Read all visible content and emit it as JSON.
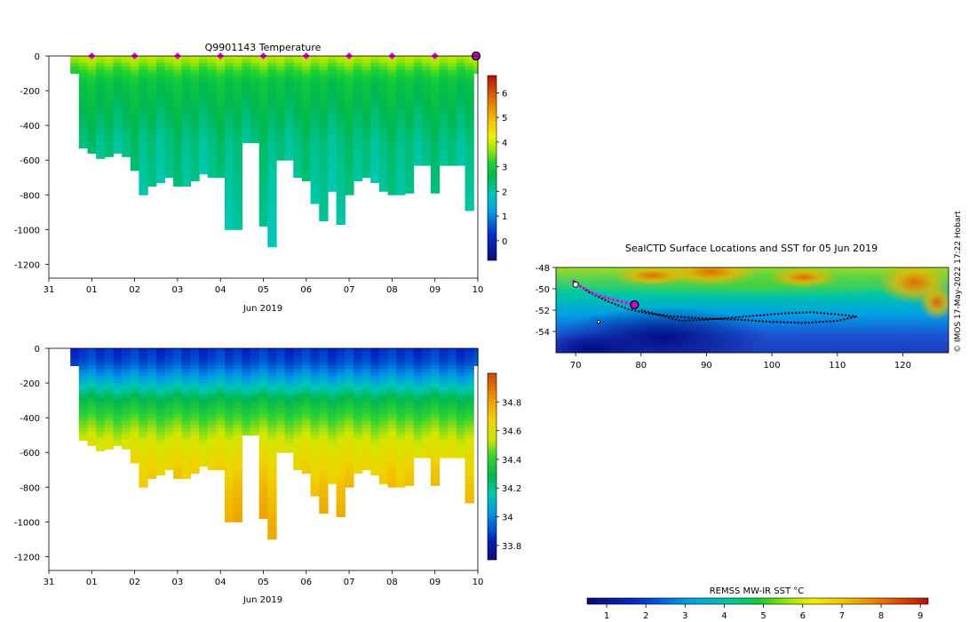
{
  "credit": "© IMOS 17-May-2022 17:22 Hobart",
  "chart_data": [
    {
      "id": "temperature",
      "type": "heatmap",
      "title": "Q9901143  Temperature",
      "xlabel": "Jun 2019",
      "xticks": [
        "31",
        "01",
        "02",
        "03",
        "04",
        "05",
        "06",
        "07",
        "08",
        "09",
        "10"
      ],
      "xlim": [
        0,
        10
      ],
      "ylim": [
        -1280,
        0
      ],
      "yticks": [
        0,
        -200,
        -400,
        -600,
        -800,
        -1000,
        -1200
      ],
      "colorbar": {
        "min": -0.8,
        "max": 6.7,
        "ticks": [
          0,
          1,
          2,
          3,
          4,
          5,
          6
        ]
      },
      "surface_markers": [
        1,
        2,
        3,
        4,
        5,
        6,
        7,
        8,
        9
      ],
      "latest_marker": 10,
      "profile_days": [
        0.6,
        0.8,
        1.0,
        1.2,
        1.4,
        1.6,
        1.8,
        2.0,
        2.2,
        2.4,
        2.6,
        2.8,
        3.0,
        3.2,
        3.4,
        3.6,
        3.8,
        4.0,
        4.2,
        4.4,
        4.6,
        4.8,
        5.0,
        5.2,
        5.4,
        5.6,
        5.8,
        6.0,
        6.2,
        6.4,
        6.6,
        6.8,
        7.0,
        7.2,
        7.4,
        7.6,
        7.8,
        8.0,
        8.2,
        8.4,
        8.6,
        8.8,
        9.0,
        9.2,
        9.4,
        9.6,
        9.8,
        10.0
      ],
      "profile_depths": [
        100,
        530,
        560,
        590,
        580,
        560,
        580,
        660,
        800,
        750,
        730,
        700,
        750,
        750,
        720,
        680,
        700,
        700,
        1000,
        1000,
        500,
        500,
        980,
        1100,
        600,
        600,
        700,
        720,
        850,
        950,
        780,
        970,
        800,
        720,
        700,
        730,
        780,
        800,
        800,
        790,
        630,
        630,
        790,
        630,
        630,
        630,
        890,
        100
      ],
      "value_stops": [
        [
          0,
          3.4
        ],
        [
          60,
          3.0
        ],
        [
          150,
          2.5
        ],
        [
          300,
          2.3
        ],
        [
          500,
          2.1
        ],
        [
          800,
          2.0
        ],
        [
          1100,
          1.9
        ]
      ]
    },
    {
      "id": "salinity",
      "type": "heatmap",
      "title": "",
      "xlabel": "Jun 2019",
      "xticks": [
        "31",
        "01",
        "02",
        "03",
        "04",
        "05",
        "06",
        "07",
        "08",
        "09",
        "10"
      ],
      "xlim": [
        0,
        10
      ],
      "ylim": [
        -1280,
        0
      ],
      "yticks": [
        0,
        -200,
        -400,
        -600,
        -800,
        -1000,
        -1200
      ],
      "colorbar": {
        "min": 33.7,
        "max": 35.0,
        "ticks": [
          "33.8",
          "34",
          "34.2",
          "34.4",
          "34.6",
          "34.8"
        ]
      },
      "profile_days": [
        0.6,
        0.8,
        1.0,
        1.2,
        1.4,
        1.6,
        1.8,
        2.0,
        2.2,
        2.4,
        2.6,
        2.8,
        3.0,
        3.2,
        3.4,
        3.6,
        3.8,
        4.0,
        4.2,
        4.4,
        4.6,
        4.8,
        5.0,
        5.2,
        5.4,
        5.6,
        5.8,
        6.0,
        6.2,
        6.4,
        6.6,
        6.8,
        7.0,
        7.2,
        7.4,
        7.6,
        7.8,
        8.0,
        8.2,
        8.4,
        8.6,
        8.8,
        9.0,
        9.2,
        9.4,
        9.6,
        9.8,
        10.0
      ],
      "profile_depths": [
        100,
        530,
        560,
        590,
        580,
        560,
        580,
        660,
        800,
        750,
        730,
        700,
        750,
        750,
        720,
        680,
        700,
        700,
        1000,
        1000,
        500,
        500,
        980,
        1100,
        600,
        600,
        700,
        720,
        850,
        950,
        780,
        970,
        800,
        720,
        700,
        730,
        780,
        800,
        800,
        790,
        630,
        630,
        790,
        630,
        630,
        630,
        890,
        100
      ],
      "value_stops": [
        [
          0,
          33.85
        ],
        [
          80,
          33.9
        ],
        [
          200,
          34.1
        ],
        [
          300,
          34.3
        ],
        [
          420,
          34.45
        ],
        [
          520,
          34.55
        ],
        [
          650,
          34.65
        ],
        [
          800,
          34.72
        ],
        [
          1000,
          34.78
        ],
        [
          1100,
          34.8
        ]
      ]
    },
    {
      "id": "map",
      "type": "map",
      "title": "SealCTD Surface Locations and SST for 05 Jun 2019",
      "xticks": [
        70,
        80,
        90,
        100,
        110,
        120
      ],
      "yticks": [
        -48,
        -50,
        -52,
        -54
      ],
      "xlim": [
        67,
        127
      ],
      "ylim": [
        -56,
        -48
      ],
      "colorbar_label": "REMSS MW-IR SST °C",
      "colorbar": {
        "min": 0.5,
        "max": 9.2,
        "ticks": [
          1,
          2,
          3,
          4,
          5,
          6,
          7,
          8,
          9
        ]
      },
      "track": {
        "outbound": [
          [
            69.8,
            -49.3
          ],
          [
            72,
            -50.3
          ],
          [
            75,
            -51.2
          ],
          [
            78,
            -51.9
          ],
          [
            81,
            -52.3
          ],
          [
            85,
            -52.6
          ],
          [
            90,
            -52.8
          ],
          [
            95,
            -52.9
          ],
          [
            100,
            -53.1
          ],
          [
            105,
            -53.2
          ],
          [
            110,
            -53.0
          ],
          [
            113,
            -52.6
          ]
        ],
        "return": [
          [
            113,
            -52.6
          ],
          [
            110,
            -52.4
          ],
          [
            106,
            -52.2
          ],
          [
            102,
            -52.3
          ],
          [
            98,
            -52.5
          ],
          [
            94,
            -52.7
          ],
          [
            90,
            -52.9
          ],
          [
            86,
            -53.0
          ],
          [
            83,
            -52.5
          ],
          [
            80,
            -52.0
          ]
        ],
        "recent": [
          [
            69.5,
            -49.2
          ],
          [
            71,
            -49.9
          ],
          [
            73,
            -50.5
          ],
          [
            75,
            -50.9
          ],
          [
            77,
            -51.2
          ],
          [
            79,
            -51.5
          ]
        ],
        "latest": [
          79,
          -51.5
        ]
      }
    }
  ]
}
